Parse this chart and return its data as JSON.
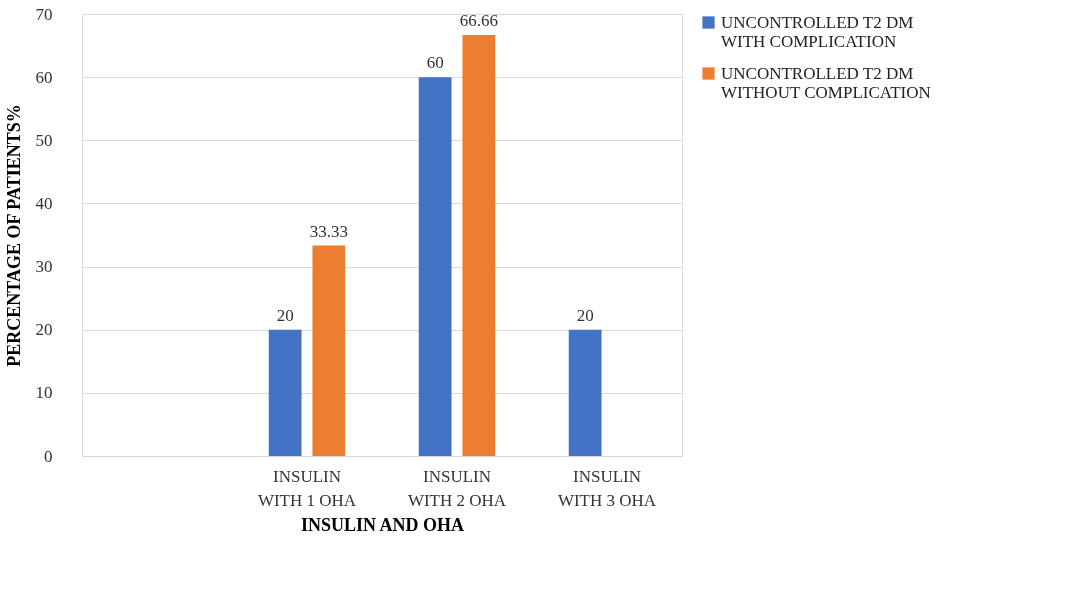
{
  "chart_data": {
    "type": "bar",
    "xlabel": "INSULIN AND OHA",
    "ylabel": "PERCENTAGE OF PATIENTS%",
    "categories": [
      null,
      "INSULIN\nWITH 1 OHA",
      "INSULIN\nWITH 2 OHA",
      "INSULIN\nWITH 3 OHA"
    ],
    "series": [
      {
        "name": "UNCONTROLLED T2 DM\nWITH COMPLICATION",
        "color": "#4472c4",
        "values": [
          null,
          20,
          60,
          20
        ]
      },
      {
        "name": "UNCONTROLLED T2 DM\nWITHOUT COMPLICATION",
        "color": "#ed7d31",
        "values": [
          null,
          33.33,
          66.66,
          null
        ]
      }
    ],
    "ylim": [
      0,
      70
    ],
    "yticks": [
      0,
      10,
      20,
      30,
      40,
      50,
      60,
      70
    ],
    "grid": "y",
    "legend": "right",
    "data_labels": true
  }
}
